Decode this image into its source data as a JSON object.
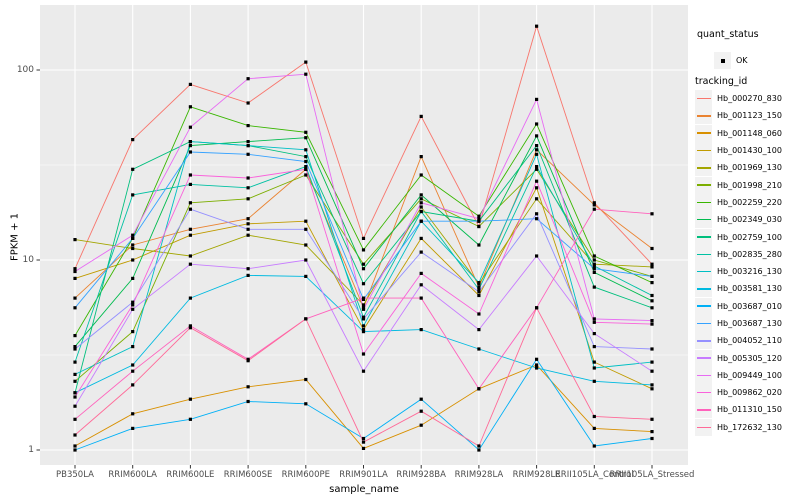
{
  "figure": {
    "y_axis": {
      "title": "FPKM + 1",
      "ticks": [
        {
          "label": "100",
          "value": 100
        },
        {
          "label": "10",
          "value": 10
        },
        {
          "label": "1",
          "value": 1
        }
      ]
    },
    "x_axis": {
      "title": "sample_name"
    }
  },
  "legend": {
    "quant_status": {
      "title": "quant_status",
      "items": [
        {
          "label": "OK"
        }
      ]
    },
    "tracking_id": {
      "title": "tracking_id"
    }
  },
  "chart_data": {
    "type": "line",
    "title": "",
    "xlabel": "sample_name",
    "ylabel": "FPKM + 1",
    "y_scale": "log10",
    "ylim": [
      1,
      220
    ],
    "y_ticks": [
      1,
      10,
      100
    ],
    "grid": "on",
    "legend_position": "right",
    "quant_status": "OK",
    "panel_background": "#EBEBEB",
    "gridline_color": "#FFFFFF",
    "marker": "small black square",
    "categories": [
      "PB350LA",
      "RRIM600LA",
      "RRIM600LE",
      "RRIM600SE",
      "RRIM600PE",
      "RRIM901LA",
      "RRIM928BA",
      "RRIM928LA",
      "RRIM928LE",
      "RRII105LA_Control",
      "RRII105LA_Stressed"
    ],
    "series": [
      {
        "name": "Hb_000270_830",
        "color": "#F8766D",
        "values": [
          9,
          43,
          84,
          67,
          110,
          13,
          57,
          15,
          170,
          20,
          9.5
        ]
      },
      {
        "name": "Hb_001123_150",
        "color": "#EA8331",
        "values": [
          6.3,
          12,
          14.5,
          16.5,
          30,
          5.6,
          35,
          7.2,
          38,
          19.5,
          11.5
        ]
      },
      {
        "name": "Hb_001148_060",
        "color": "#D89000",
        "values": [
          1.05,
          1.55,
          1.85,
          2.15,
          2.35,
          1.02,
          1.35,
          2.1,
          2.8,
          1.3,
          1.25
        ]
      },
      {
        "name": "Hb_001430_100",
        "color": "#C09B00",
        "values": [
          8,
          10,
          13.5,
          15.5,
          16,
          4.3,
          13,
          6.5,
          24,
          2.9,
          2.1
        ]
      },
      {
        "name": "Hb_001969_130",
        "color": "#A3A500",
        "values": [
          12.8,
          11.5,
          10.5,
          13.5,
          12,
          5.8,
          19,
          7.5,
          21,
          9.5,
          9.2
        ]
      },
      {
        "name": "Hb_001998_210",
        "color": "#7CAE00",
        "values": [
          2.3,
          4.2,
          20,
          21,
          28,
          9.5,
          21,
          15,
          30,
          10,
          8.2
        ]
      },
      {
        "name": "Hb_002259_220",
        "color": "#39B600",
        "values": [
          4,
          13,
          64,
          51,
          47,
          11.3,
          28,
          17,
          52,
          10.5,
          7.6
        ]
      },
      {
        "name": "Hb_002349_030",
        "color": "#00BB4E",
        "values": [
          3.5,
          8,
          40,
          42,
          44,
          9,
          22,
          12,
          45,
          8.6,
          6.1
        ]
      },
      {
        "name": "Hb_002759_100",
        "color": "#00BF7D",
        "values": [
          2,
          30,
          42,
          40,
          35,
          7.5,
          18,
          16,
          40,
          7.2,
          5.6
        ]
      },
      {
        "name": "Hb_002835_280",
        "color": "#00C1A3",
        "values": [
          2.9,
          22,
          25,
          24,
          31,
          5,
          18,
          7,
          31,
          9.3,
          6.5
        ]
      },
      {
        "name": "Hb_003216_130",
        "color": "#00BFC4",
        "values": [
          2.5,
          3.5,
          42,
          40,
          38,
          4.5,
          16,
          7.6,
          36,
          2.7,
          2.9
        ]
      },
      {
        "name": "Hb_003581_130",
        "color": "#00BAE0",
        "values": [
          2,
          2.8,
          6.3,
          8.3,
          8.2,
          4.2,
          4.3,
          3.4,
          2.7,
          2.3,
          2.2
        ]
      },
      {
        "name": "Hb_003687_010",
        "color": "#00B0F6",
        "values": [
          1,
          1.3,
          1.45,
          1.8,
          1.75,
          1.15,
          1.85,
          1,
          3,
          1.05,
          1.15
        ]
      },
      {
        "name": "Hb_003687_130",
        "color": "#35A2FF",
        "values": [
          5.6,
          13,
          37,
          36,
          33,
          6.2,
          16,
          16,
          16.5,
          9,
          8.2
        ]
      },
      {
        "name": "Hb_004052_110",
        "color": "#9590FF",
        "values": [
          3.4,
          6,
          18.5,
          14.5,
          14.5,
          4.9,
          11,
          6.8,
          17.5,
          3.5,
          3.4
        ]
      },
      {
        "name": "Hb_005305_120",
        "color": "#C77CFF",
        "values": [
          1.7,
          5.5,
          9.5,
          9,
          10,
          2.6,
          7.4,
          4.3,
          10.5,
          4.1,
          2.6
        ]
      },
      {
        "name": "Hb_009449_100",
        "color": "#E76BF3",
        "values": [
          8.7,
          13.5,
          50,
          90,
          95,
          5.5,
          20,
          16.5,
          70,
          4.9,
          4.8
        ]
      },
      {
        "name": "Hb_009862_020",
        "color": "#FA62DB",
        "values": [
          1.9,
          5.8,
          28,
          27,
          30,
          3.2,
          8.5,
          5.2,
          26,
          4.7,
          4.6
        ]
      },
      {
        "name": "Hb_011310_150",
        "color": "#FF62BC",
        "values": [
          1.45,
          2.6,
          4.5,
          3,
          4.9,
          6.3,
          6.3,
          2.1,
          5.6,
          18.5,
          17.5
        ]
      },
      {
        "name": "Hb_172632_130",
        "color": "#FF6A98",
        "values": [
          1.2,
          2.2,
          4.4,
          2.95,
          4.9,
          1.1,
          1.6,
          1.05,
          5.6,
          1.5,
          1.45
        ]
      }
    ]
  }
}
